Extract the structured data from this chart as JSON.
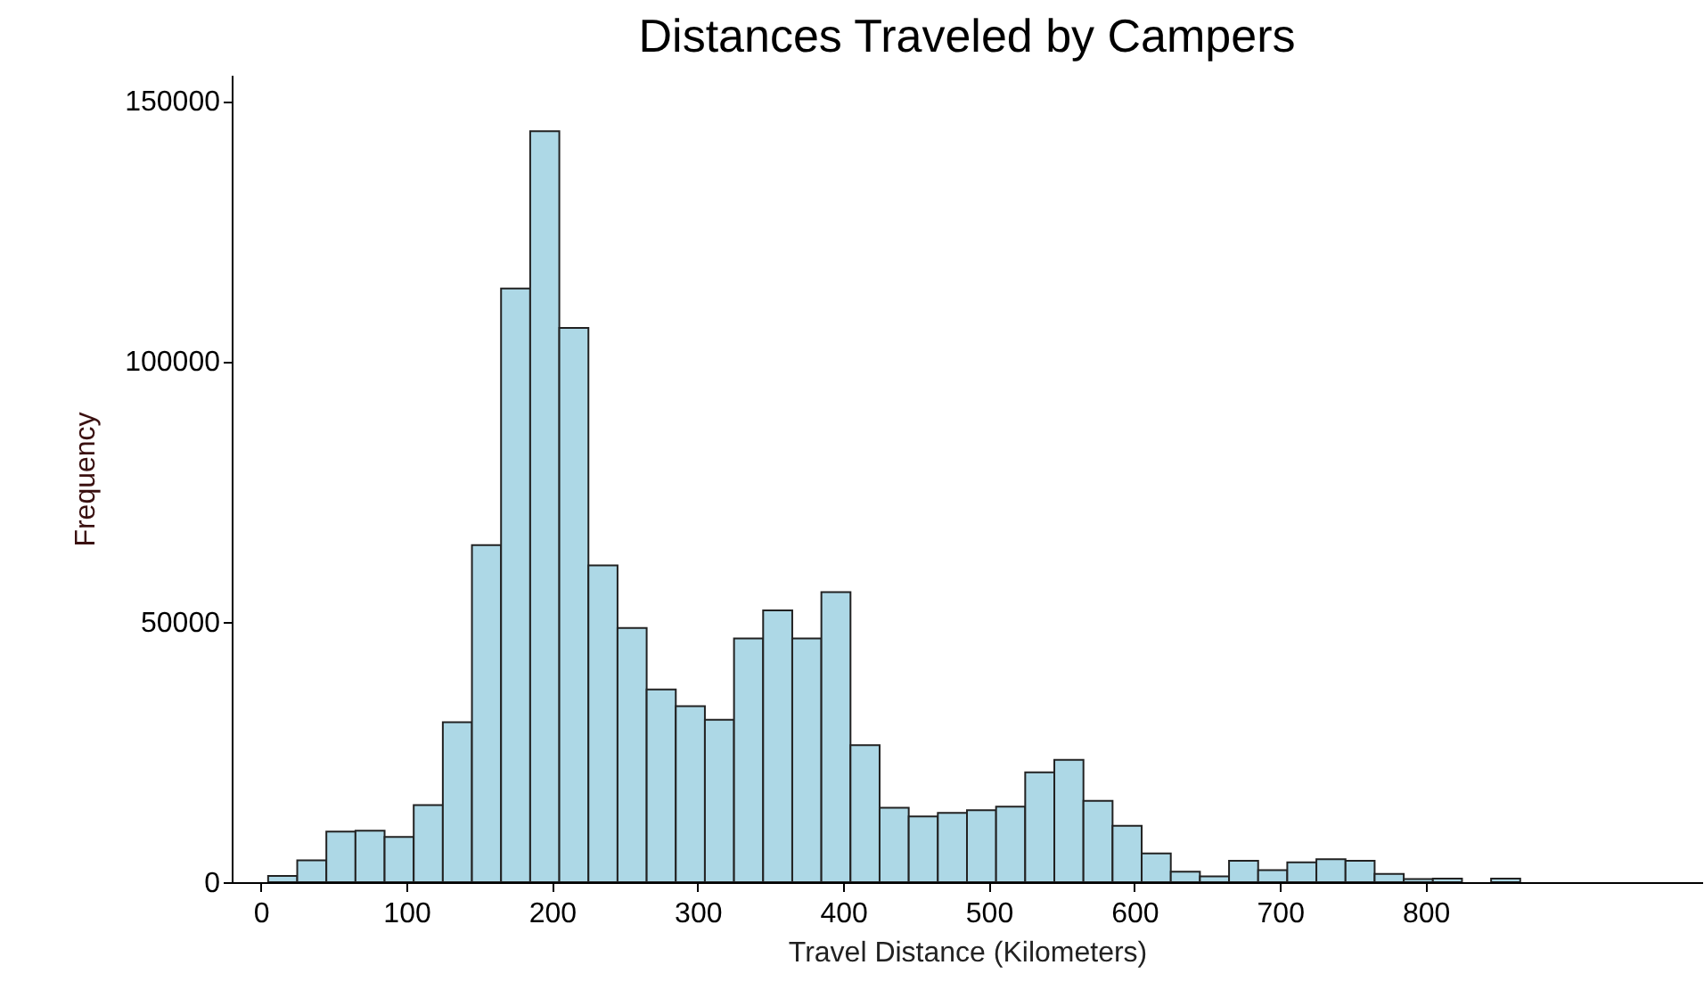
{
  "chart_data": {
    "type": "histogram",
    "title": "Distances Traveled by Campers",
    "xlabel": "Travel Distance (Kilometers)",
    "ylabel": "Frequency",
    "bins": [
      5,
      25,
      45,
      65,
      85,
      105,
      125,
      145,
      165,
      185,
      205,
      225,
      245,
      265,
      285,
      305,
      325,
      345,
      365,
      385,
      405,
      425,
      445,
      465,
      485,
      505,
      525,
      545,
      565,
      585,
      605,
      625,
      645,
      665,
      685,
      705,
      725,
      745,
      765,
      785,
      805,
      825,
      845,
      865,
      885,
      905,
      925,
      945,
      965,
      985
    ],
    "values": [
      1200,
      4200,
      9700,
      9900,
      8700,
      14800,
      30700,
      64700,
      114000,
      144200,
      106400,
      60800,
      48800,
      37000,
      33800,
      31200,
      46800,
      52200,
      46800,
      55700,
      26300,
      14300,
      12600,
      13300,
      13800,
      14500,
      21100,
      23500,
      15600,
      10800,
      5500,
      2000,
      1100,
      4100,
      2300,
      3800,
      4400,
      4100,
      1600,
      600,
      700,
      null,
      700,
      null,
      null,
      null,
      null,
      null,
      null
    ],
    "color": "#add8e6",
    "xlim": [
      -20,
      990
    ],
    "ylim": [
      0,
      155000
    ],
    "xticks": [
      0,
      100,
      200,
      300,
      400,
      500,
      600,
      700,
      800
    ],
    "yticks": [
      0,
      50000,
      100000,
      150000
    ],
    "grid": false
  }
}
